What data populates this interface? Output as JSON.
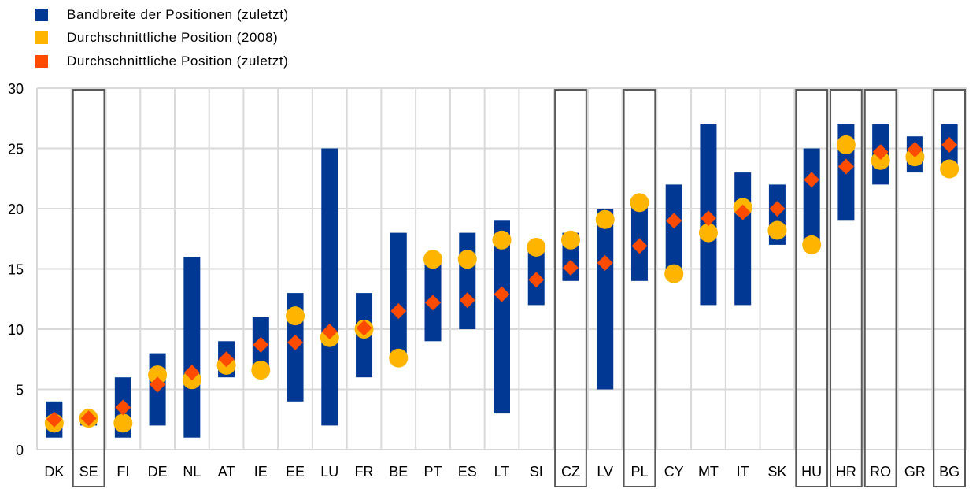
{
  "colors": {
    "range": "#003894",
    "avg2008": "#FFB400",
    "avgLatest": "#FF4B00",
    "grid": "#D9D9D9",
    "highlight": "#595959"
  },
  "chart_data": {
    "type": "range-bar-with-markers",
    "title": "",
    "xlabel": "",
    "ylabel": "",
    "ylim": [
      0,
      30
    ],
    "yticks": [
      0,
      5,
      10,
      15,
      20,
      25,
      30
    ],
    "grid": true,
    "legend_position": "top-left",
    "categories": [
      "DK",
      "SE",
      "FI",
      "DE",
      "NL",
      "AT",
      "IE",
      "EE",
      "LU",
      "FR",
      "BE",
      "PT",
      "ES",
      "LT",
      "SI",
      "CZ",
      "LV",
      "PL",
      "CY",
      "MT",
      "IT",
      "SK",
      "HU",
      "HR",
      "RO",
      "GR",
      "BG"
    ],
    "highlighted": [
      "SE",
      "CZ",
      "PL",
      "HU",
      "HR",
      "RO",
      "BG"
    ],
    "series": [
      {
        "name": "Bandbreite der Positionen (zuletzt)",
        "kind": "range",
        "low": [
          1,
          2,
          1,
          2,
          1,
          6,
          6.5,
          4,
          2,
          6,
          8,
          9,
          10,
          3,
          12,
          14,
          5,
          14,
          14.5,
          12,
          12,
          17,
          17.2,
          19,
          22,
          23,
          23.3
        ],
        "high": [
          4,
          3,
          6,
          8,
          16,
          9,
          11,
          13,
          25,
          13,
          18,
          15.7,
          18,
          19,
          16.8,
          18,
          20,
          20.8,
          22,
          27,
          23,
          22,
          25,
          27,
          27,
          26,
          27
        ]
      },
      {
        "name": "Durchschnittliche Position (2008)",
        "kind": "circle",
        "values": [
          2.2,
          2.6,
          2.2,
          6.2,
          5.8,
          7.0,
          6.6,
          11.1,
          9.3,
          10.0,
          7.6,
          15.8,
          15.8,
          17.4,
          16.8,
          17.4,
          19.1,
          20.5,
          14.6,
          18.0,
          20.1,
          18.2,
          17.0,
          25.3,
          24.0,
          24.3,
          23.3
        ]
      },
      {
        "name": "Durchschnittliche Position (zuletzt)",
        "kind": "diamond",
        "values": [
          2.5,
          2.6,
          3.5,
          5.4,
          6.4,
          7.5,
          8.7,
          8.9,
          9.8,
          10.1,
          11.5,
          12.2,
          12.4,
          12.9,
          14.1,
          15.1,
          15.5,
          16.9,
          19.0,
          19.2,
          19.7,
          20.0,
          22.4,
          23.5,
          24.7,
          24.9,
          25.3
        ]
      }
    ]
  }
}
